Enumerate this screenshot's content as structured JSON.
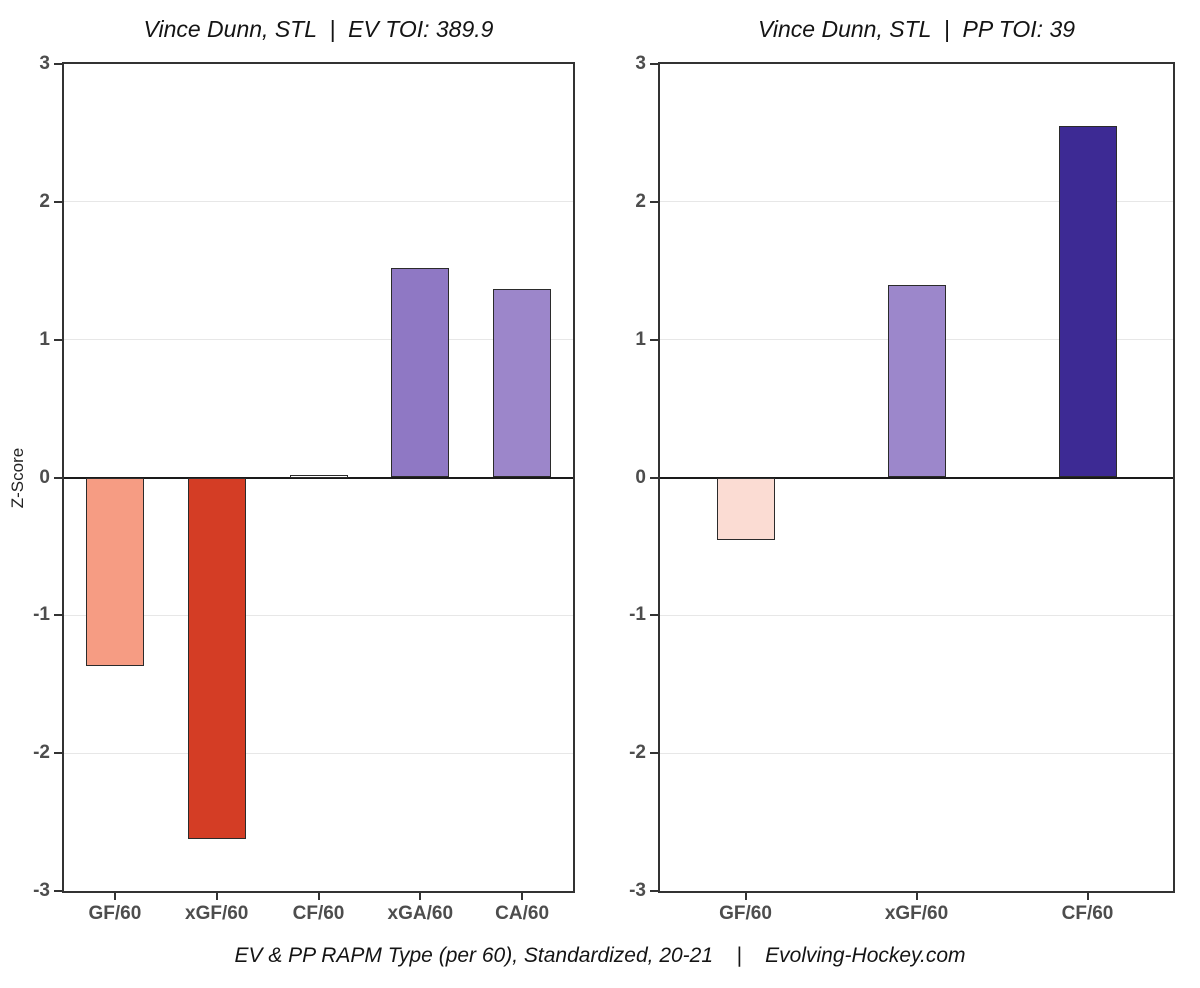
{
  "figure": {
    "ylabel": "Z-Score",
    "caption": "EV & PP RAPM Type (per 60), Standardized, 20-21    |    Evolving-Hockey.com",
    "background_color": "#ffffff",
    "axis_text_color": "#4d4d4d",
    "panel_border_color": "#333333",
    "zero_line_color": "#1a1a1a",
    "gridline_color": "#e7e7e7"
  },
  "chart_data": [
    {
      "type": "bar",
      "title": "Vince Dunn, STL  |  EV TOI: 389.9",
      "player": "Vince Dunn",
      "team": "STL",
      "strength": "EV",
      "toi": 389.9,
      "categories": [
        "GF/60",
        "xGF/60",
        "CF/60",
        "xGA/60",
        "CA/60"
      ],
      "values": [
        -1.37,
        -2.62,
        0.02,
        1.52,
        1.37
      ],
      "bar_colors": [
        "#F69C83",
        "#D43D25",
        "#FFFFFF",
        "#8F78C4",
        "#9C86CA"
      ],
      "ylabel": "Z-Score",
      "ylim": [
        -3,
        3
      ],
      "yticks": [
        3,
        2,
        1,
        0,
        -1,
        -2,
        -3
      ],
      "grid": "light horizontal gridlines at integer z-scores, solid dark line at zero",
      "legend": "none"
    },
    {
      "type": "bar",
      "title": "Vince Dunn, STL  |  PP TOI: 39",
      "player": "Vince Dunn",
      "team": "STL",
      "strength": "PP",
      "toi": 39,
      "categories": [
        "GF/60",
        "xGF/60",
        "CF/60"
      ],
      "values": [
        -0.45,
        1.4,
        2.55
      ],
      "bar_colors": [
        "#FBDCD3",
        "#9C87CB",
        "#3D2A94"
      ],
      "ylabel": "Z-Score",
      "ylim": [
        -3,
        3
      ],
      "yticks": [
        3,
        2,
        1,
        0,
        -1,
        -2,
        -3
      ],
      "grid": "light horizontal gridlines at integer z-scores, solid dark line at zero",
      "legend": "none"
    }
  ]
}
